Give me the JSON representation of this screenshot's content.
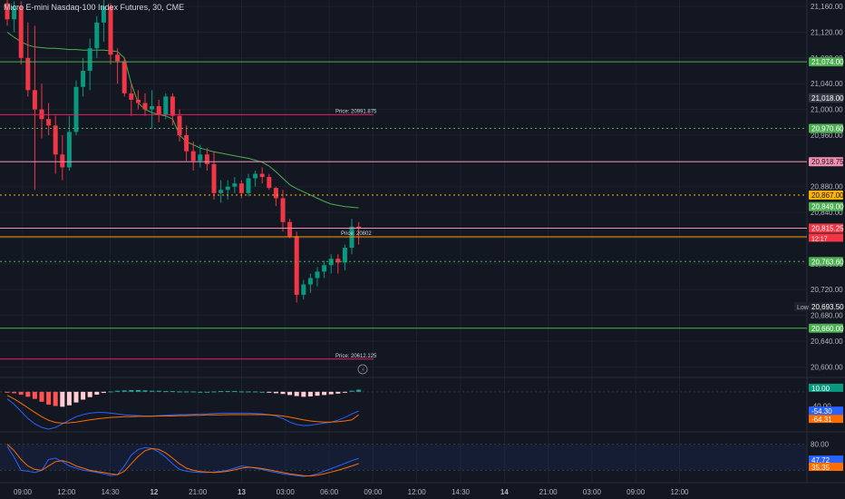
{
  "header": {
    "title": "Micro E-mini Nasdaq-100 Index Futures, 30, CME"
  },
  "colors": {
    "background": "#131722",
    "up": "#089981",
    "down": "#f23645",
    "grid": "#1e222d",
    "ma": "#4caf50",
    "macd": "#2962ff",
    "signal": "#ff6d00",
    "stoch_k": "#2962ff",
    "stoch_d": "#ff6d00",
    "text": "#b2b5be"
  },
  "chart_data": {
    "type": "candlestick",
    "title": "Micro E-mini Nasdaq-100 Index Futures, 30, CME",
    "y_ticks": [
      "21,160.00",
      "21,120.00",
      "21,080.00",
      "21,040.00",
      "21,000.00",
      "20,960.00",
      "20,920.00",
      "20,880.00",
      "20,840.00",
      "20,800.00",
      "20,760.00",
      "20,720.00",
      "20,680.00",
      "20,640.00",
      "20,600.00"
    ],
    "x_ticks": [
      "09:00",
      "12:00",
      "14:30",
      "12",
      "21:00",
      "13",
      "03:00",
      "06:00",
      "09:00",
      "12:00",
      "14:30",
      "14",
      "21:00",
      "03:00",
      "09:00",
      "12:00"
    ],
    "ylim": [
      20585,
      21170
    ],
    "candles": [
      [
        21165,
        21170,
        21130,
        21140
      ],
      [
        21140,
        21168,
        21120,
        21160
      ],
      [
        21160,
        21168,
        21070,
        21080
      ],
      [
        21080,
        21135,
        21020,
        21030
      ],
      [
        21030,
        21130,
        20875,
        21000
      ],
      [
        21000,
        21040,
        20955,
        20985
      ],
      [
        20985,
        21010,
        20960,
        20975
      ],
      [
        20975,
        20990,
        20900,
        20930
      ],
      [
        20930,
        20960,
        20890,
        20910
      ],
      [
        20910,
        20990,
        20905,
        20965
      ],
      [
        20965,
        21045,
        20960,
        21035
      ],
      [
        21035,
        21080,
        21020,
        21060
      ],
      [
        21060,
        21110,
        21030,
        21095
      ],
      [
        21095,
        21145,
        21080,
        21135
      ],
      [
        21135,
        21170,
        21105,
        21160
      ],
      [
        21160,
        21165,
        21070,
        21085
      ],
      [
        21085,
        21095,
        21040,
        21075
      ],
      [
        21075,
        21080,
        21020,
        21025
      ],
      [
        21025,
        21040,
        20990,
        21015
      ],
      [
        21015,
        21030,
        21000,
        21010
      ],
      [
        21010,
        21025,
        20990,
        21000
      ],
      [
        21000,
        21030,
        20970,
        21005
      ],
      [
        21005,
        21015,
        20980,
        20992
      ],
      [
        20992,
        21025,
        20985,
        21020
      ],
      [
        21020,
        21025,
        20975,
        20990
      ],
      [
        20990,
        21000,
        20950,
        20960
      ],
      [
        20960,
        20975,
        20920,
        20935
      ],
      [
        20935,
        20950,
        20905,
        20920
      ],
      [
        20920,
        20945,
        20910,
        20930
      ],
      [
        20930,
        20940,
        20905,
        20915
      ],
      [
        20915,
        20935,
        20860,
        20870
      ],
      [
        20870,
        20890,
        20855,
        20875
      ],
      [
        20875,
        20890,
        20860,
        20880
      ],
      [
        20880,
        20895,
        20870,
        20885
      ],
      [
        20885,
        20890,
        20862,
        20870
      ],
      [
        20870,
        20900,
        20865,
        20893
      ],
      [
        20893,
        20905,
        20880,
        20900
      ],
      [
        20900,
        20910,
        20885,
        20895
      ],
      [
        20895,
        20900,
        20875,
        20878
      ],
      [
        20878,
        20880,
        20850,
        20862
      ],
      [
        20862,
        20875,
        20810,
        20825
      ],
      [
        20825,
        20830,
        20800,
        20803
      ],
      [
        20803,
        20810,
        20700,
        20712
      ],
      [
        20712,
        20735,
        20705,
        20728
      ],
      [
        20728,
        20745,
        20715,
        20738
      ],
      [
        20738,
        20755,
        20725,
        20748
      ],
      [
        20748,
        20765,
        20738,
        20758
      ],
      [
        20758,
        20775,
        20745,
        20768
      ],
      [
        20768,
        20775,
        20745,
        20762
      ],
      [
        20762,
        20790,
        20750,
        20785
      ],
      [
        20785,
        20830,
        20775,
        20818
      ],
      [
        20818,
        20825,
        20790,
        20815
      ]
    ],
    "ma": [
      21120,
      21112,
      21105,
      21100,
      21097,
      21096,
      21095,
      21095,
      21094,
      21093,
      21093,
      21092,
      21092,
      21092,
      21092,
      21091,
      21090,
      21080,
      21040,
      21010,
      21000,
      20995,
      20992,
      20990,
      20985,
      20960,
      20950,
      20945,
      20940,
      20937,
      20934,
      20932,
      20930,
      20928,
      20926,
      20924,
      20921,
      20918,
      20912,
      20903,
      20893,
      20883,
      20877,
      20872,
      20867,
      20862,
      20857,
      20853,
      20851,
      20849,
      20848,
      20847
    ],
    "price_lines": [
      {
        "label": "21,074.00",
        "value": 21074,
        "color": "#4caf50",
        "style": "solid"
      },
      {
        "label": "21,018.00",
        "value": 21018,
        "color": "#363a45",
        "style": "none"
      },
      {
        "label": "20,970.60",
        "value": 20970.6,
        "color": "#4caf50",
        "style": "dotted"
      },
      {
        "label": "20,918.75",
        "value": 20918.75,
        "color": "#f48fb1",
        "style": "solid"
      },
      {
        "label": "20,867.00",
        "value": 20867,
        "color": "#ffb300",
        "style": "dotted"
      },
      {
        "label": "20,849.00",
        "value": 20849,
        "color": "#4caf50",
        "style": "none"
      },
      {
        "label": "20,815.50",
        "value": 20815.5,
        "color": "#f48fb1",
        "style": "solid"
      },
      {
        "label": "20,815.25",
        "value": 20815.25,
        "color": "#f23645",
        "style": "none"
      },
      {
        "label": "20,763.60",
        "value": 20763.6,
        "color": "#4caf50",
        "style": "dotted"
      },
      {
        "label": "20,693.50",
        "value": 20693.5,
        "color": "#1e222d",
        "style": "none"
      },
      {
        "label": "20,660.00",
        "value": 20660,
        "color": "#4caf50",
        "style": "solid"
      }
    ],
    "countdown": "12:17",
    "low_label": "Low",
    "annotations": [
      {
        "text": "Price: 20991.875",
        "value": 20991.875,
        "color": "#e91e63",
        "line_to": 0.44
      },
      {
        "text": "Price: 20802",
        "value": 20802,
        "color": "#ff9800",
        "line_to": 1.0
      },
      {
        "text": "Price: 20612.125",
        "value": 20612.125,
        "color": "#e91e63",
        "line_to": 0.44
      }
    ],
    "macd": {
      "hist": [
        -2,
        -4,
        -8,
        -14,
        -20,
        -28,
        -36,
        -40,
        -42,
        -38,
        -30,
        -22,
        -15,
        -8,
        -3,
        1,
        3,
        4,
        5,
        5,
        4,
        3,
        3,
        2,
        2,
        1,
        1,
        1,
        0,
        0,
        1,
        2,
        2,
        2,
        1,
        1,
        1,
        0,
        -2,
        -4,
        -6,
        -9,
        -12,
        -14,
        -13,
        -11,
        -9,
        -7,
        -5,
        -2,
        3,
        6
      ],
      "macd": [
        -20,
        -35,
        -55,
        -75,
        -90,
        -100,
        -105,
        -100,
        -90,
        -80,
        -70,
        -64,
        -60,
        -58,
        -58,
        -60,
        -62,
        -65,
        -66,
        -67,
        -68,
        -68,
        -67,
        -66,
        -65,
        -64,
        -64,
        -63,
        -62,
        -62,
        -61,
        -60,
        -60,
        -60,
        -60,
        -60,
        -61,
        -62,
        -64,
        -68,
        -75,
        -85,
        -92,
        -95,
        -94,
        -91,
        -88,
        -85,
        -80,
        -72,
        -62,
        -54.3
      ],
      "signal": [
        -10,
        -20,
        -32,
        -45,
        -58,
        -70,
        -80,
        -86,
        -88,
        -87,
        -85,
        -82,
        -79,
        -76,
        -74,
        -72,
        -71,
        -70,
        -70,
        -69,
        -69,
        -69,
        -68,
        -68,
        -68,
        -67,
        -67,
        -66,
        -66,
        -65,
        -65,
        -65,
        -64,
        -64,
        -64,
        -64,
        -64,
        -64,
        -65,
        -66,
        -68,
        -71,
        -75,
        -79,
        -82,
        -84,
        -85,
        -85,
        -84,
        -82,
        -79,
        -64.31
      ],
      "ticks": [
        "10.00",
        "-40.00"
      ],
      "values": [
        "10.00",
        "-54.30",
        "-64.31"
      ]
    },
    "stoch": {
      "k": [
        75,
        50,
        20,
        18,
        15,
        20,
        45,
        48,
        40,
        30,
        25,
        20,
        18,
        15,
        12,
        8,
        10,
        30,
        55,
        68,
        72,
        70,
        62,
        50,
        35,
        22,
        18,
        16,
        15,
        15,
        16,
        18,
        20,
        25,
        30,
        28,
        25,
        22,
        18,
        15,
        12,
        10,
        8,
        6,
        8,
        12,
        18,
        24,
        30,
        36,
        42,
        47.72
      ],
      "d": [
        80,
        65,
        45,
        30,
        22,
        20,
        30,
        40,
        42,
        38,
        30,
        25,
        20,
        17,
        15,
        12,
        10,
        18,
        35,
        52,
        65,
        70,
        68,
        60,
        48,
        35,
        25,
        20,
        17,
        16,
        15,
        16,
        18,
        21,
        25,
        27,
        26,
        24,
        21,
        18,
        15,
        12,
        10,
        8,
        7,
        9,
        12,
        16,
        20,
        25,
        30,
        35.35
      ],
      "ticks": [
        "80.00"
      ],
      "values": [
        "47.72",
        "35.35"
      ]
    }
  }
}
